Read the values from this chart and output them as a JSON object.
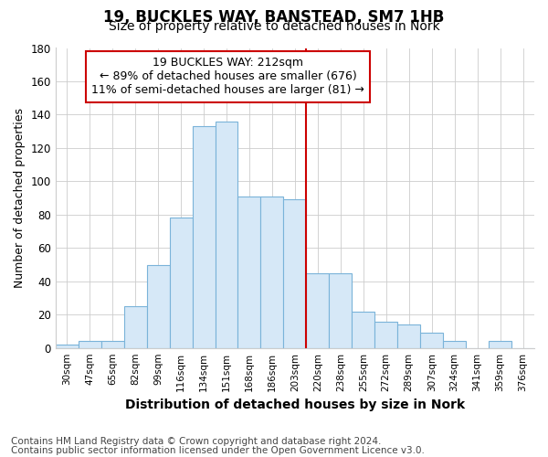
{
  "title1": "19, BUCKLES WAY, BANSTEAD, SM7 1HB",
  "title2": "Size of property relative to detached houses in Nork",
  "xlabel": "Distribution of detached houses by size in Nork",
  "ylabel": "Number of detached properties",
  "footer1": "Contains HM Land Registry data © Crown copyright and database right 2024.",
  "footer2": "Contains public sector information licensed under the Open Government Licence v3.0.",
  "annotation_title": "19 BUCKLES WAY: 212sqm",
  "annotation_line1": "← 89% of detached houses are smaller (676)",
  "annotation_line2": "11% of semi-detached houses are larger (81) →",
  "bar_labels": [
    "30sqm",
    "47sqm",
    "65sqm",
    "82sqm",
    "99sqm",
    "116sqm",
    "134sqm",
    "151sqm",
    "168sqm",
    "186sqm",
    "203sqm",
    "220sqm",
    "238sqm",
    "255sqm",
    "272sqm",
    "289sqm",
    "307sqm",
    "324sqm",
    "341sqm",
    "359sqm",
    "376sqm"
  ],
  "bar_heights": [
    2,
    4,
    4,
    25,
    50,
    78,
    133,
    136,
    91,
    91,
    89,
    45,
    45,
    22,
    16,
    14,
    9,
    4,
    0,
    4,
    0
  ],
  "bar_color": "#d6e8f7",
  "bar_edge_color": "#7ab3d9",
  "vline_color": "#cc0000",
  "vline_x_index": 11.0,
  "annotation_box_edge_color": "#cc0000",
  "annotation_box_fill": "#ffffff",
  "ylim": [
    0,
    180
  ],
  "yticks": [
    0,
    20,
    40,
    60,
    80,
    100,
    120,
    140,
    160,
    180
  ],
  "background_color": "#ffffff",
  "grid_color": "#cccccc",
  "title1_fontsize": 12,
  "title2_fontsize": 10,
  "annotation_fontsize": 9,
  "footer_fontsize": 7.5,
  "xlabel_fontsize": 10,
  "ylabel_fontsize": 9
}
